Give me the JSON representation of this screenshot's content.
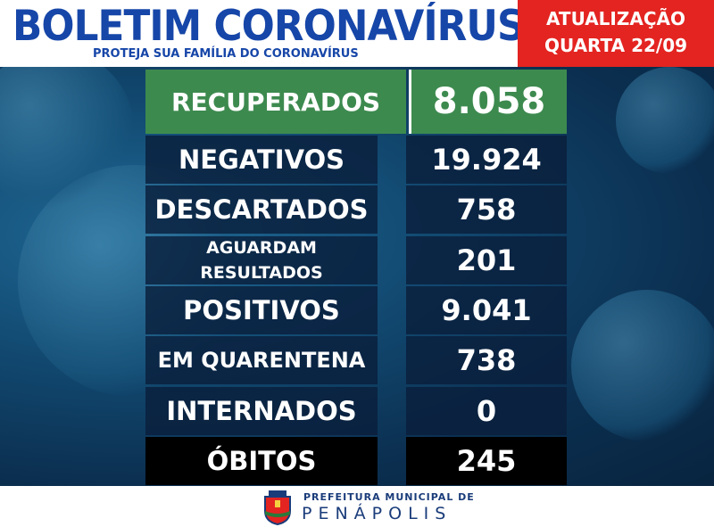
{
  "header": {
    "title": "BOLETIM CORONAVÍRUS",
    "subtitle": "PROTEJA SUA FAMÍLIA DO CORONAVÍRUS"
  },
  "update": {
    "line1": "ATUALIZAÇÃO",
    "line2": "QUARTA 22/09"
  },
  "table": {
    "rows": [
      [
        "RECUPERADOS",
        "8.058"
      ],
      [
        "NEGATIVOS",
        "19.924"
      ],
      [
        "DESCARTADOS",
        "758"
      ],
      [
        "AGUARDAM RESULTADOS",
        "201"
      ],
      [
        "POSITIVOS",
        "9.041"
      ],
      [
        "EM QUARENTENA",
        "738"
      ],
      [
        "INTERNADOS",
        "0"
      ],
      [
        "ÓBITOS",
        "245"
      ]
    ]
  },
  "footer": {
    "line1": "PREFEITURA MUNICIPAL DE",
    "line2": "PENÁPOLIS"
  }
}
